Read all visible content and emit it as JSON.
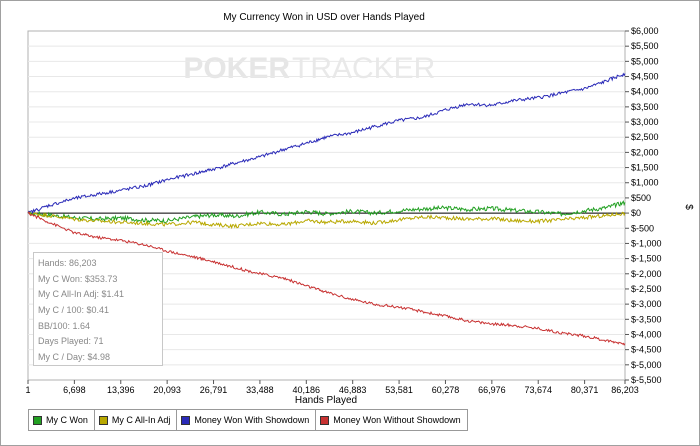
{
  "chart_data": {
    "type": "line",
    "title": "My Currency Won in USD over Hands Played",
    "xlabel": "Hands Played",
    "ylabel": "$",
    "xlim": [
      1,
      86203
    ],
    "ylim": [
      -5500,
      6000
    ],
    "x_ticks": [
      "1",
      "6,698",
      "13,396",
      "20,093",
      "26,791",
      "33,488",
      "40,186",
      "46,883",
      "53,581",
      "60,278",
      "66,976",
      "73,674",
      "80,371",
      "86,203"
    ],
    "y_ticks": [
      "$6,000",
      "$5,500",
      "$5,000",
      "$4,500",
      "$4,000",
      "$3,500",
      "$3,000",
      "$2,500",
      "$2,000",
      "$1,500",
      "$1,000",
      "$500",
      "$0",
      "$-500",
      "$-1,000",
      "$-1,500",
      "$-2,000",
      "$-2,500",
      "$-3,000",
      "$-3,500",
      "$-4,000",
      "$-4,500",
      "$-5,000",
      "$-5,500"
    ],
    "y_tick_values": [
      6000,
      5500,
      5000,
      4500,
      4000,
      3500,
      3000,
      2500,
      2000,
      1500,
      1000,
      500,
      0,
      -500,
      -1000,
      -1500,
      -2000,
      -2500,
      -3000,
      -3500,
      -4000,
      -4500,
      -5000,
      -5500
    ],
    "grid": "horizontal",
    "legend_placement": "bottom",
    "series": [
      {
        "name": "My C Won",
        "color": "#22a022",
        "x": [
          1,
          3000,
          6698,
          10000,
          13396,
          17000,
          20093,
          24000,
          26791,
          30000,
          33488,
          37000,
          40186,
          43000,
          46883,
          50000,
          53581,
          57000,
          60278,
          63500,
          66976,
          70000,
          73674,
          77000,
          80371,
          83500,
          86203
        ],
        "y": [
          0,
          -60,
          -150,
          -200,
          -160,
          -230,
          -250,
          -120,
          -60,
          -100,
          30,
          -40,
          50,
          -20,
          60,
          0,
          80,
          140,
          170,
          120,
          150,
          90,
          40,
          -30,
          80,
          180,
          354
        ]
      },
      {
        "name": "My C All-In Adj",
        "color": "#b8a800",
        "x": [
          1,
          3000,
          6698,
          10000,
          13396,
          17000,
          20093,
          24000,
          26791,
          30000,
          33488,
          37000,
          40186,
          43000,
          46883,
          50000,
          53581,
          57000,
          60278,
          63500,
          66976,
          70000,
          73674,
          77000,
          80371,
          83500,
          86203
        ],
        "y": [
          0,
          -80,
          -200,
          -260,
          -300,
          -340,
          -380,
          -300,
          -380,
          -430,
          -330,
          -380,
          -250,
          -300,
          -260,
          -330,
          -220,
          -130,
          -150,
          -200,
          -180,
          -250,
          -270,
          -220,
          -150,
          -80,
          1
        ]
      },
      {
        "name": "Money Won With Showdown",
        "color": "#2a2ab8",
        "x": [
          1,
          3000,
          6698,
          10000,
          13396,
          17000,
          20093,
          24000,
          26791,
          30000,
          33488,
          37000,
          40186,
          43000,
          46883,
          50000,
          53581,
          57000,
          60278,
          63500,
          66976,
          70000,
          73674,
          77000,
          80371,
          83500,
          86203
        ],
        "y": [
          0,
          250,
          480,
          620,
          750,
          900,
          1100,
          1300,
          1450,
          1650,
          1850,
          2100,
          2300,
          2500,
          2650,
          2850,
          3050,
          3150,
          3400,
          3600,
          3550,
          3700,
          3800,
          3950,
          4100,
          4350,
          4600
        ]
      },
      {
        "name": "Money Won Without Showdown",
        "color": "#c83232",
        "x": [
          1,
          3000,
          6698,
          10000,
          13396,
          17000,
          20093,
          24000,
          26791,
          30000,
          33488,
          37000,
          40186,
          43000,
          46883,
          50000,
          53581,
          57000,
          60278,
          63500,
          66976,
          70000,
          73674,
          77000,
          80371,
          83500,
          86203
        ],
        "y": [
          0,
          -300,
          -650,
          -800,
          -900,
          -1050,
          -1250,
          -1450,
          -1600,
          -1800,
          -2000,
          -2150,
          -2400,
          -2600,
          -2850,
          -3000,
          -3100,
          -3250,
          -3400,
          -3550,
          -3650,
          -3700,
          -3800,
          -3950,
          -4050,
          -4200,
          -4300
        ]
      }
    ]
  },
  "watermark": {
    "left": "POKER",
    "right": "TRACKER"
  },
  "stats": {
    "hands": "Hands: 86,203",
    "won": "My C Won: $353.73",
    "allin": "My C All-In Adj: $1.41",
    "per100": "My C / 100: $0.41",
    "bb100": "BB/100: 1.64",
    "days": "Days Played: 71",
    "perday": "My C / Day: $4.98"
  }
}
